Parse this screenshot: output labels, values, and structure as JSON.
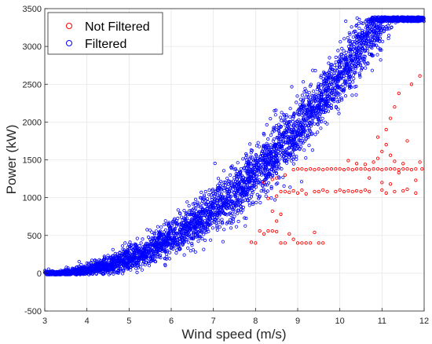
{
  "chart_data": {
    "type": "scatter",
    "xlabel": "Wind speed (m/s)",
    "ylabel": "Power (kW)",
    "xlim": [
      3,
      12
    ],
    "ylim": [
      -500,
      3500
    ],
    "x_ticks": [
      "3",
      "4",
      "5",
      "6",
      "7",
      "8",
      "9",
      "10",
      "11",
      "12"
    ],
    "y_ticks": [
      "-500",
      "0",
      "500",
      "1000",
      "1500",
      "2000",
      "2500",
      "3000",
      "3500"
    ],
    "grid": true,
    "legend_position": "top-left",
    "marker": "open-circle",
    "series": [
      {
        "name": "Not Filtered",
        "color": "#ff0000",
        "points": [
          [
            7.9,
            410
          ],
          [
            8.0,
            400
          ],
          [
            8.1,
            560
          ],
          [
            8.2,
            520
          ],
          [
            8.3,
            560
          ],
          [
            8.4,
            560
          ],
          [
            8.5,
            550
          ],
          [
            8.6,
            400
          ],
          [
            8.7,
            400
          ],
          [
            8.8,
            520
          ],
          [
            8.9,
            450
          ],
          [
            9.0,
            400
          ],
          [
            9.1,
            400
          ],
          [
            9.2,
            400
          ],
          [
            9.3,
            400
          ],
          [
            9.4,
            540
          ],
          [
            9.5,
            400
          ],
          [
            9.6,
            400
          ],
          [
            8.5,
            690
          ],
          [
            8.6,
            780
          ],
          [
            8.4,
            820
          ],
          [
            8.3,
            990
          ],
          [
            8.5,
            1020
          ],
          [
            8.6,
            1080
          ],
          [
            8.7,
            1080
          ],
          [
            8.8,
            1070
          ],
          [
            8.9,
            1090
          ],
          [
            9.0,
            1060
          ],
          [
            9.1,
            1100
          ],
          [
            9.2,
            1050
          ],
          [
            9.4,
            1080
          ],
          [
            9.5,
            1080
          ],
          [
            9.6,
            1100
          ],
          [
            9.7,
            1080
          ],
          [
            9.9,
            1080
          ],
          [
            10.0,
            1100
          ],
          [
            10.1,
            1080
          ],
          [
            10.2,
            1090
          ],
          [
            10.3,
            1080
          ],
          [
            10.4,
            1090
          ],
          [
            10.5,
            1080
          ],
          [
            10.6,
            1100
          ],
          [
            10.7,
            1080
          ],
          [
            11.0,
            1100
          ],
          [
            11.1,
            1060
          ],
          [
            11.3,
            1080
          ],
          [
            11.5,
            1090
          ],
          [
            11.8,
            1060
          ],
          [
            8.2,
            1200
          ],
          [
            8.4,
            1240
          ],
          [
            8.5,
            1260
          ],
          [
            8.7,
            1300
          ],
          [
            8.9,
            1370
          ],
          [
            9.0,
            1380
          ],
          [
            9.1,
            1380
          ],
          [
            9.2,
            1370
          ],
          [
            9.3,
            1380
          ],
          [
            9.4,
            1370
          ],
          [
            9.5,
            1380
          ],
          [
            9.6,
            1370
          ],
          [
            9.7,
            1380
          ],
          [
            9.8,
            1380
          ],
          [
            9.9,
            1380
          ],
          [
            10.0,
            1380
          ],
          [
            10.1,
            1370
          ],
          [
            10.2,
            1380
          ],
          [
            10.3,
            1370
          ],
          [
            10.4,
            1380
          ],
          [
            10.5,
            1380
          ],
          [
            10.6,
            1380
          ],
          [
            10.7,
            1370
          ],
          [
            10.8,
            1380
          ],
          [
            10.9,
            1380
          ],
          [
            11.0,
            1370
          ],
          [
            11.1,
            1380
          ],
          [
            11.2,
            1380
          ],
          [
            11.3,
            1380
          ],
          [
            11.4,
            1370
          ],
          [
            11.5,
            1380
          ],
          [
            11.6,
            1380
          ],
          [
            11.7,
            1370
          ],
          [
            11.8,
            1380
          ],
          [
            11.95,
            1380
          ],
          [
            10.2,
            1490
          ],
          [
            10.4,
            1450
          ],
          [
            10.6,
            1440
          ],
          [
            10.8,
            1470
          ],
          [
            10.9,
            1520
          ],
          [
            11.0,
            1610
          ],
          [
            11.1,
            1700
          ],
          [
            11.2,
            1560
          ],
          [
            11.3,
            1480
          ],
          [
            11.5,
            1450
          ],
          [
            11.4,
            1330
          ],
          [
            11.0,
            1200
          ],
          [
            11.2,
            1180
          ],
          [
            10.7,
            1260
          ],
          [
            10.9,
            1800
          ],
          [
            11.1,
            1900
          ],
          [
            11.2,
            2050
          ],
          [
            11.3,
            2200
          ],
          [
            11.4,
            2380
          ],
          [
            11.6,
            1750
          ],
          [
            11.7,
            2500
          ],
          [
            11.9,
            2610
          ],
          [
            11.9,
            1470
          ],
          [
            11.6,
            1110
          ],
          [
            11.8,
            1230
          ]
        ]
      },
      {
        "name": "Filtered",
        "color": "#0000ff",
        "generation": {
          "a": 47.8,
          "c": 0,
          "noise_kw": 180,
          "x_start": 3.0,
          "x_end": 12.0,
          "cap_kw": 3390
        }
      }
    ]
  }
}
